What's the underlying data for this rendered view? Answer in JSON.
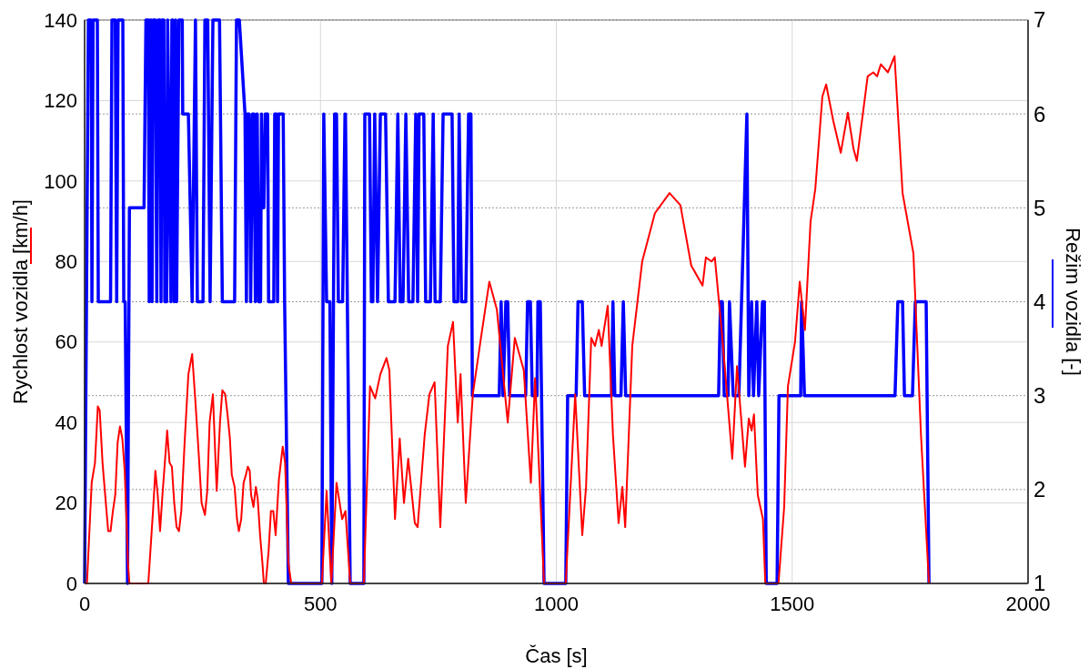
{
  "chart_data": {
    "type": "line",
    "xlabel": "Čas [s]",
    "ylabel": "Rychlost vozidla [km/h]",
    "y2label": "Režim vozidla [-]",
    "xlim": [
      0,
      2000
    ],
    "xticks": [
      0,
      500,
      1000,
      1500,
      2000
    ],
    "ylim": [
      0,
      140
    ],
    "yticks": [
      0,
      20,
      40,
      60,
      80,
      100,
      120,
      140
    ],
    "y2lim": [
      1,
      7
    ],
    "y2ticks": [
      1,
      2,
      3,
      4,
      5,
      6,
      7
    ],
    "grid": true,
    "series": [
      {
        "color": "#ff0000",
        "x": [
          0,
          5,
          15,
          22,
          28,
          32,
          38,
          45,
          50,
          55,
          60,
          65,
          70,
          75,
          80,
          85,
          92,
          95,
          135,
          145,
          150,
          155,
          160,
          165,
          172,
          175,
          180,
          185,
          190,
          195,
          200,
          205,
          212,
          220,
          228,
          235,
          242,
          248,
          255,
          260,
          265,
          272,
          280,
          287,
          292,
          298,
          303,
          308,
          312,
          318,
          323,
          327,
          332,
          337,
          342,
          346,
          350,
          353,
          358,
          363,
          367,
          372,
          377,
          380,
          384,
          390,
          395,
          400,
          405,
          412,
          420,
          425,
          432,
          438,
          503,
          513,
          523,
          534,
          546,
          553,
          563,
          592,
          605,
          616,
          627,
          640,
          646,
          658,
          668,
          677,
          686,
          700,
          706,
          721,
          731,
          742,
          754,
          770,
          781,
          791,
          797,
          808,
          823,
          839,
          858,
          874,
          897,
          912,
          931,
          946,
          955,
          974,
          1020,
          1040,
          1055,
          1063,
          1074,
          1082,
          1090,
          1096,
          1101,
          1109,
          1120,
          1132,
          1140,
          1146,
          1161,
          1182,
          1209,
          1240,
          1263,
          1286,
          1310,
          1317,
          1329,
          1336,
          1352,
          1373,
          1383,
          1400,
          1408,
          1414,
          1419,
          1427,
          1438,
          1443,
          1471,
          1483,
          1491,
          1506,
          1516,
          1527,
          1539,
          1549,
          1564,
          1572,
          1587,
          1603,
          1618,
          1630,
          1637,
          1660,
          1672,
          1680,
          1688,
          1703,
          1717,
          1734,
          1757,
          1773,
          1790
        ],
        "values": [
          0,
          0,
          25,
          30,
          44,
          43,
          30,
          20,
          13,
          13,
          18,
          22,
          35,
          39,
          36,
          28,
          5,
          0,
          0,
          18,
          28,
          22,
          13,
          22,
          33,
          38,
          30,
          29,
          20,
          14,
          13,
          18,
          35,
          52,
          57,
          45,
          32,
          20,
          17,
          23,
          40,
          47,
          23,
          40,
          48,
          47,
          42,
          36,
          27,
          24,
          16,
          13,
          16,
          25,
          27,
          29,
          28,
          22,
          19,
          24,
          21,
          12,
          5,
          0,
          0,
          8,
          18,
          18,
          12,
          26,
          34,
          30,
          5,
          0,
          0,
          23,
          0,
          25,
          16,
          18,
          0,
          0,
          49,
          46,
          52,
          56,
          53,
          16,
          36,
          20,
          31,
          15,
          14,
          37,
          47,
          50,
          14,
          59,
          65,
          40,
          52,
          20,
          47,
          60,
          75,
          68,
          40,
          61,
          53,
          25,
          51,
          0,
          0,
          47,
          12,
          24,
          61,
          59,
          63,
          59,
          63,
          69,
          37,
          15,
          24,
          14,
          59,
          80,
          92,
          97,
          94,
          79,
          74,
          81,
          80,
          81,
          61,
          31,
          54,
          29,
          41,
          38,
          42,
          22,
          16,
          0,
          0,
          19,
          49,
          60,
          75,
          63,
          90,
          98,
          121,
          124,
          115,
          107,
          117,
          108,
          105,
          126,
          127,
          126,
          129,
          127,
          131,
          97,
          82,
          37,
          0
        ]
      },
      {
        "color": "#0000ff",
        "axis": "y2",
        "x": [
          0,
          4,
          8,
          14,
          15.5,
          18,
          27,
          29,
          55,
          58,
          65,
          68,
          71,
          81,
          83,
          86,
          91,
          95,
          126,
          130,
          135,
          137,
          139,
          141,
          143,
          145,
          150,
          153,
          156,
          160,
          162,
          164,
          168,
          170,
          174,
          176,
          183,
          185,
          187,
          190,
          193,
          195,
          200,
          207,
          208,
          220,
          228,
          235,
          239,
          251,
          255,
          261,
          266,
          272,
          286,
          292,
          318,
          322,
          328,
          340,
          343,
          345,
          349,
          352,
          356,
          359,
          362,
          365,
          366,
          369,
          373,
          375,
          377,
          380,
          383,
          388,
          390,
          397,
          401,
          403,
          407,
          409,
          411,
          421,
          424,
          432,
          503,
          507,
          513,
          520,
          524,
          530,
          534,
          538,
          547,
          552,
          553,
          563,
          592,
          594,
          604,
          608,
          611,
          615,
          621,
          627,
          638,
          644,
          658,
          664,
          669,
          675,
          681,
          687,
          696,
          702,
          706,
          709,
          719,
          723,
          733,
          739,
          743,
          754,
          760,
          779,
          783,
          791,
          794,
          799,
          808,
          814,
          819,
          822,
          879,
          883,
          887,
          893,
          897,
          901,
          935,
          939,
          945,
          949,
          959,
          961,
          966,
          974,
          1020,
          1024,
          1042,
          1046,
          1055,
          1060,
          1117,
          1120,
          1124,
          1137,
          1142,
          1147,
          1344,
          1348,
          1352,
          1356,
          1364,
          1367,
          1375,
          1387,
          1404,
          1408,
          1414,
          1418,
          1425,
          1429,
          1437,
          1441,
          1445,
          1468,
          1472,
          1518,
          1520,
          1526,
          1718,
          1724,
          1734,
          1738,
          1755,
          1761,
          1784,
          1790
        ],
        "values": [
          1,
          4,
          7,
          7,
          4,
          7,
          7,
          4,
          4,
          7,
          7,
          4,
          7,
          7,
          4,
          4,
          1,
          5,
          5,
          7,
          7,
          4,
          7,
          7,
          4,
          7,
          7,
          4,
          7,
          7,
          4,
          7,
          7,
          4,
          4,
          7,
          4,
          7,
          7,
          4,
          7,
          4,
          7,
          7,
          6,
          6,
          4,
          7,
          4,
          4,
          7,
          7,
          4,
          7,
          7,
          4,
          4,
          7,
          7,
          6,
          4,
          6,
          6,
          4,
          6,
          6,
          4,
          6,
          6,
          4,
          4,
          6,
          5,
          5,
          6,
          6,
          4,
          4,
          4,
          6,
          6,
          4,
          6,
          6,
          4,
          1,
          1,
          6,
          4,
          4,
          1,
          6,
          6,
          4,
          4,
          6,
          6,
          1,
          1,
          6,
          6,
          4,
          4,
          6,
          4,
          6,
          6,
          4,
          4,
          6,
          4,
          4,
          6,
          4,
          4,
          6,
          4,
          6,
          6,
          4,
          4,
          6,
          4,
          4,
          6,
          6,
          4,
          4,
          6,
          4,
          4,
          6,
          6,
          3,
          3,
          4,
          3,
          4,
          4,
          3,
          3,
          4,
          4,
          3,
          3,
          4,
          4,
          1,
          1,
          3,
          3,
          4,
          4,
          3,
          3,
          4,
          3,
          3,
          4,
          3,
          3,
          4,
          4,
          3,
          3,
          4,
          3,
          3,
          6,
          3,
          4,
          3,
          4,
          3,
          4,
          4,
          1,
          1,
          3,
          3,
          4,
          3,
          3,
          4,
          4,
          3,
          3,
          4,
          4,
          1
        ]
      }
    ]
  }
}
